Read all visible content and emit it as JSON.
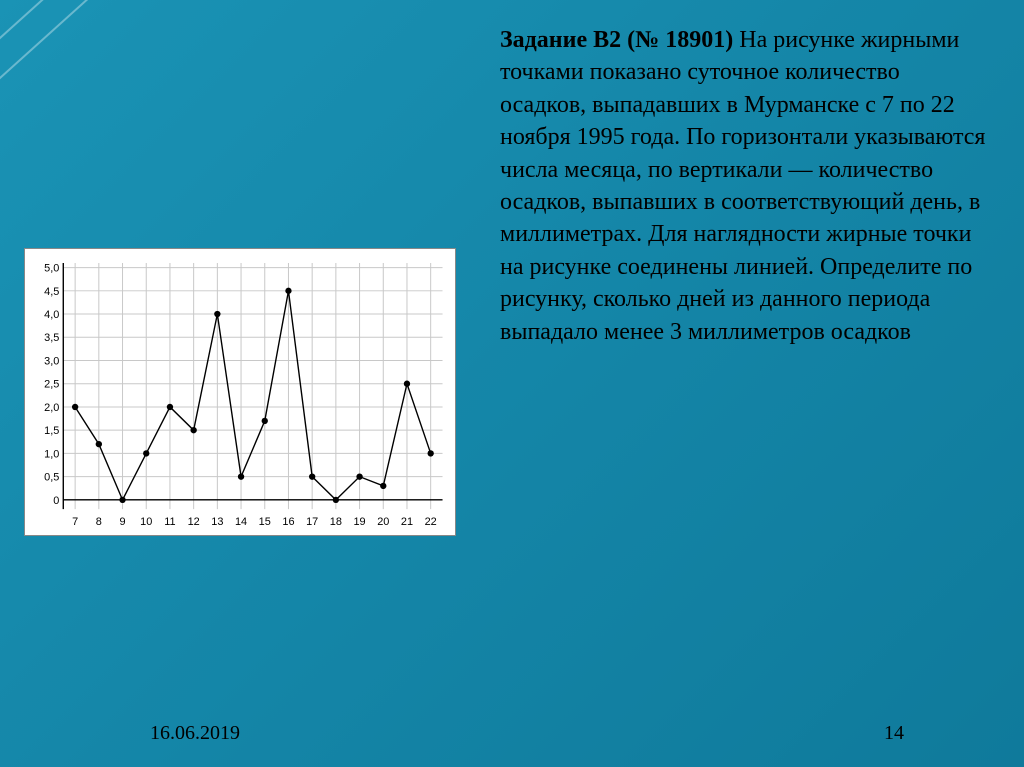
{
  "task": {
    "title_bold": "Задание B2 (№ 18901)",
    "body": " На рисунке жирными точками показано суточное количество осадков, выпадавших в Мурманске с 7 по 22 ноября 1995 года. По горизонтали указываются числа месяца, по вертикали — количество осадков, выпавших в соответствующий день, в миллиметрах. Для наглядности жирные точки на рисунке соединены линией. Определите по рисунку, сколько дней из данного периода выпадало менее 3 миллиметров осадков"
  },
  "chart": {
    "type": "line",
    "background_color": "#ffffff",
    "grid_color": "#c8c8c8",
    "axis_color": "#000000",
    "line_color": "#000000",
    "marker_color": "#000000",
    "line_width": 1.4,
    "marker_radius": 3.2,
    "tick_font_size": 11,
    "x": {
      "min": 6.5,
      "max": 22.5,
      "ticks": [
        7,
        8,
        9,
        10,
        11,
        12,
        13,
        14,
        15,
        16,
        17,
        18,
        19,
        20,
        21,
        22
      ]
    },
    "y": {
      "min": -0.2,
      "max": 5.1,
      "ticks": [
        0,
        0.5,
        1.0,
        1.5,
        2.0,
        2.5,
        3.0,
        3.5,
        4.0,
        4.5,
        5.0
      ],
      "tick_labels": [
        "0",
        "0,5",
        "1,0",
        "1,5",
        "2,0",
        "2,5",
        "3,0",
        "3,5",
        "4,0",
        "4,5",
        "5,0"
      ]
    },
    "series": [
      {
        "x": 7,
        "y": 2.0
      },
      {
        "x": 8,
        "y": 1.2
      },
      {
        "x": 9,
        "y": 0.0
      },
      {
        "x": 10,
        "y": 1.0
      },
      {
        "x": 11,
        "y": 2.0
      },
      {
        "x": 12,
        "y": 1.5
      },
      {
        "x": 13,
        "y": 4.0
      },
      {
        "x": 14,
        "y": 0.5
      },
      {
        "x": 15,
        "y": 1.7
      },
      {
        "x": 16,
        "y": 4.5
      },
      {
        "x": 17,
        "y": 0.5
      },
      {
        "x": 18,
        "y": 0.0
      },
      {
        "x": 19,
        "y": 0.5
      },
      {
        "x": 20,
        "y": 0.3
      },
      {
        "x": 21,
        "y": 2.5
      },
      {
        "x": 22,
        "y": 1.0
      }
    ]
  },
  "footer": {
    "date": "16.06.2019",
    "page": "14"
  },
  "slide_bg_colors": [
    "#1a93b5",
    "#0f7a9b"
  ]
}
